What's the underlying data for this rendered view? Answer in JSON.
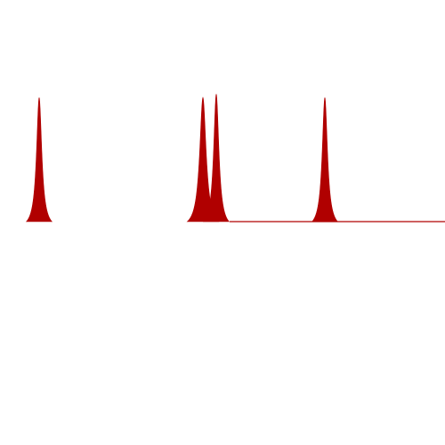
{
  "chart_data": {
    "type": "area",
    "title": "",
    "xlabel": "",
    "ylabel": "",
    "grid": false,
    "legend": false,
    "fill_color": "#b00000",
    "baseline_color": "#b00000",
    "xlim": [
      0,
      500
    ],
    "ylim": [
      0,
      170
    ],
    "baseline_line_range": [
      258,
      500
    ],
    "series": [
      {
        "peaks": [
          {
            "center": 44,
            "height": 148,
            "width": 4.5
          },
          {
            "center": 228,
            "height": 148,
            "width": 5.5
          },
          {
            "center": 243,
            "height": 152,
            "width": 4.5
          },
          {
            "center": 365,
            "height": 148,
            "width": 4.5
          }
        ]
      }
    ]
  }
}
